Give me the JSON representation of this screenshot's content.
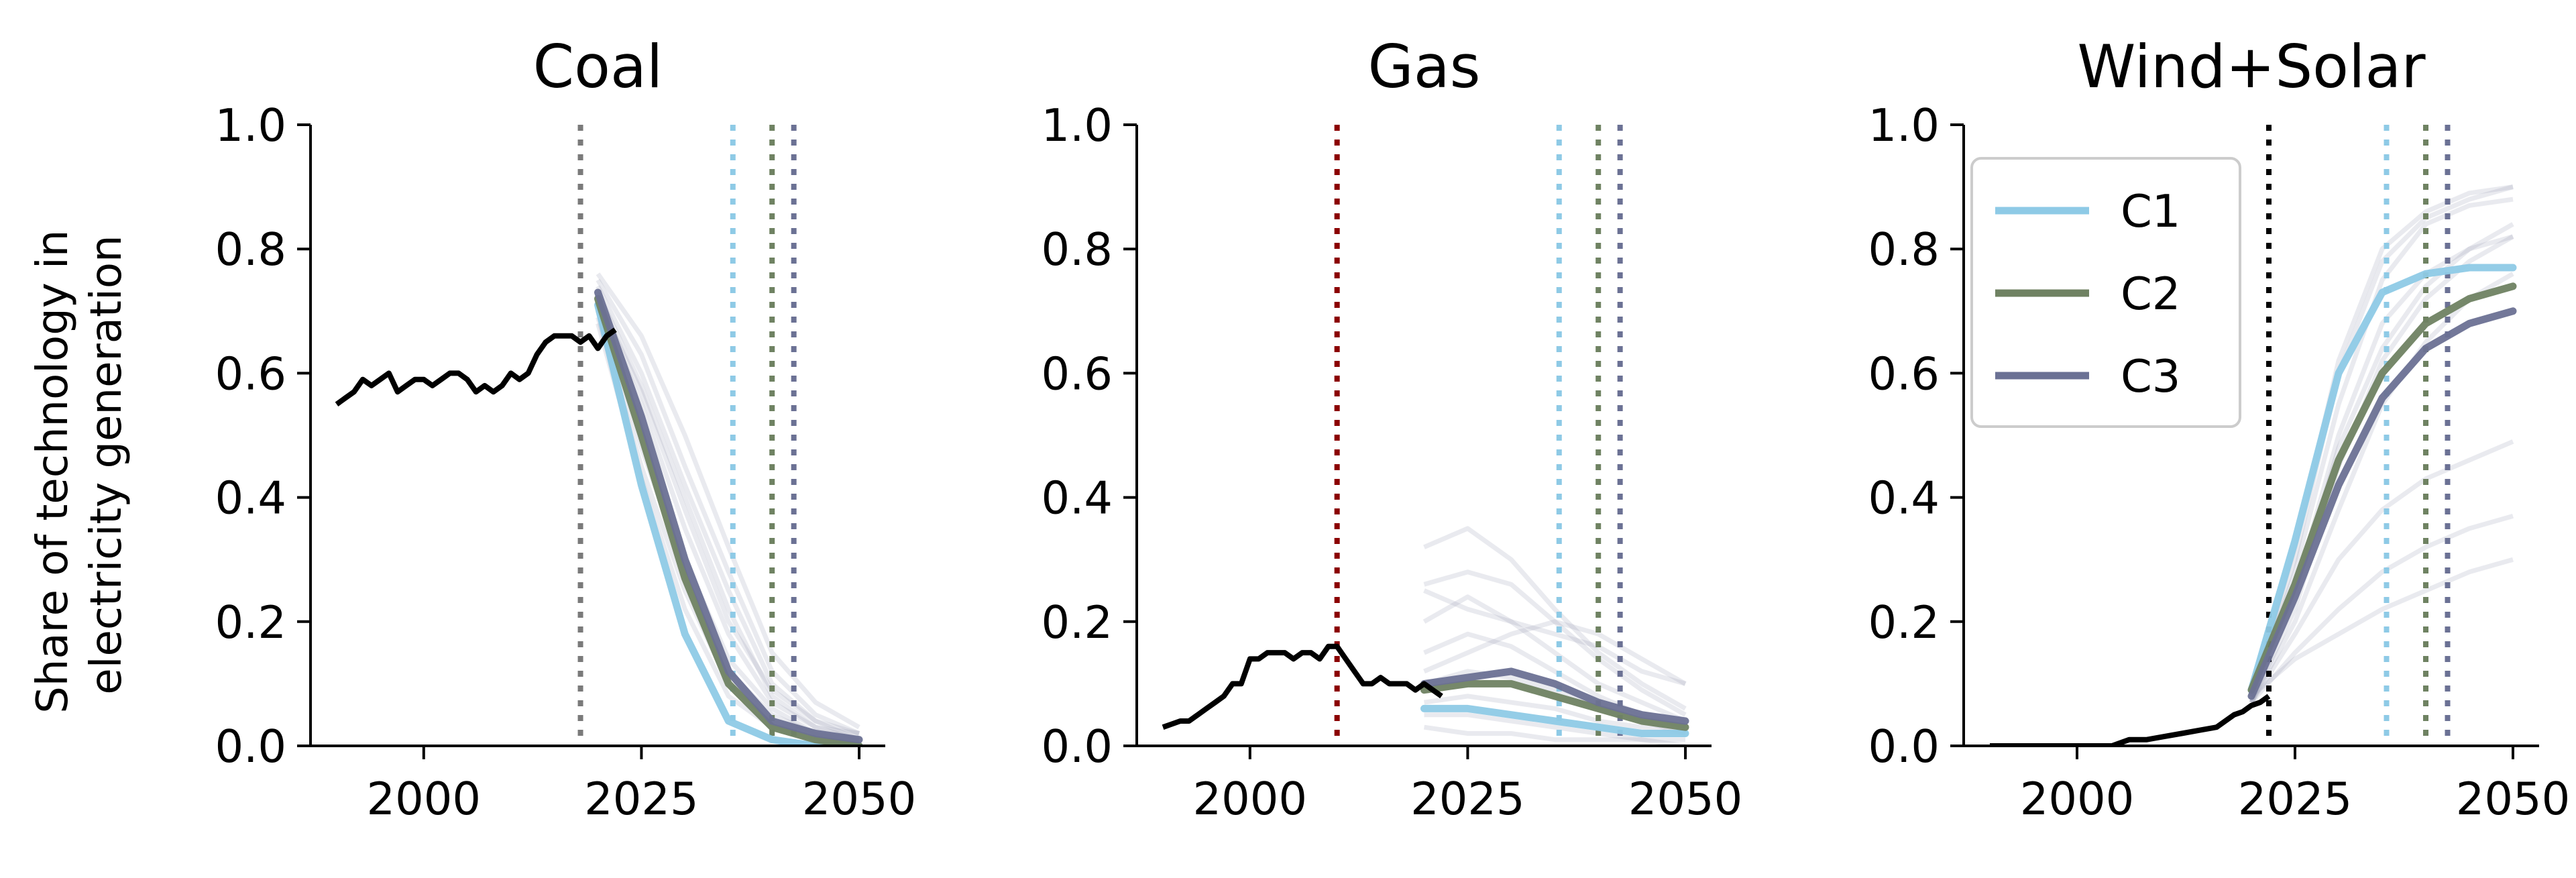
{
  "colors": {
    "history": "#000000",
    "envelope": "#9aa0b8",
    "C1": "#8ecae6",
    "C2": "#6f8262",
    "C3": "#6b7194"
  },
  "y_axis_label_line1": "Share of technology in",
  "y_axis_label_line2": "electricity generation",
  "legend_position": "upper left (Wind+Solar panel)",
  "chart_data": [
    {
      "type": "line",
      "title": "Coal",
      "xlim": [
        1987,
        2053
      ],
      "ylim": [
        0,
        1
      ],
      "xticks": [
        2000,
        2025,
        2050
      ],
      "yticks": [
        0.0,
        0.2,
        0.4,
        0.6,
        0.8,
        1.0
      ],
      "grid": false,
      "history": {
        "x": [
          1990,
          1991,
          1992,
          1993,
          1994,
          1995,
          1996,
          1997,
          1998,
          1999,
          2000,
          2001,
          2002,
          2003,
          2004,
          2005,
          2006,
          2007,
          2008,
          2009,
          2010,
          2011,
          2012,
          2013,
          2014,
          2015,
          2016,
          2017,
          2018,
          2019,
          2020,
          2021,
          2022
        ],
        "y": [
          0.55,
          0.56,
          0.57,
          0.59,
          0.58,
          0.59,
          0.6,
          0.57,
          0.58,
          0.59,
          0.59,
          0.58,
          0.59,
          0.6,
          0.6,
          0.59,
          0.57,
          0.58,
          0.57,
          0.58,
          0.6,
          0.59,
          0.6,
          0.63,
          0.65,
          0.66,
          0.66,
          0.66,
          0.65,
          0.66,
          0.64,
          0.66,
          0.67
        ]
      },
      "envelope_x": [
        2020,
        2025,
        2030,
        2035,
        2040,
        2045,
        2050
      ],
      "envelope": [
        [
          0.72,
          0.55,
          0.35,
          0.18,
          0.07,
          0.03,
          0.01
        ],
        [
          0.74,
          0.6,
          0.42,
          0.25,
          0.1,
          0.04,
          0.02
        ],
        [
          0.7,
          0.48,
          0.28,
          0.12,
          0.05,
          0.02,
          0.01
        ],
        [
          0.73,
          0.58,
          0.4,
          0.22,
          0.08,
          0.03,
          0.02
        ],
        [
          0.71,
          0.52,
          0.3,
          0.14,
          0.06,
          0.02,
          0.01
        ],
        [
          0.75,
          0.63,
          0.45,
          0.28,
          0.12,
          0.05,
          0.02
        ],
        [
          0.69,
          0.45,
          0.25,
          0.1,
          0.04,
          0.02,
          0.0
        ],
        [
          0.72,
          0.57,
          0.38,
          0.2,
          0.09,
          0.04,
          0.01
        ],
        [
          0.76,
          0.66,
          0.5,
          0.32,
          0.15,
          0.07,
          0.03
        ],
        [
          0.68,
          0.43,
          0.22,
          0.08,
          0.03,
          0.01,
          0.0
        ]
      ],
      "series": [
        {
          "name": "C1",
          "x": [
            2020,
            2025,
            2030,
            2035,
            2040,
            2045,
            2050
          ],
          "y": [
            0.71,
            0.42,
            0.18,
            0.04,
            0.01,
            0.0,
            0.0
          ]
        },
        {
          "name": "C2",
          "x": [
            2020,
            2025,
            2030,
            2035,
            2040,
            2045,
            2050
          ],
          "y": [
            0.72,
            0.5,
            0.27,
            0.1,
            0.03,
            0.01,
            0.0
          ]
        },
        {
          "name": "C3",
          "x": [
            2020,
            2025,
            2030,
            2035,
            2040,
            2045,
            2050
          ],
          "y": [
            0.73,
            0.53,
            0.3,
            0.12,
            0.04,
            0.02,
            0.01
          ]
        }
      ],
      "vlines": [
        {
          "x": 2018,
          "color": "#7a7a7a"
        },
        {
          "x": 2035.5,
          "color": "#8ecae6"
        },
        {
          "x": 2040,
          "color": "#6f8262"
        },
        {
          "x": 2042.5,
          "color": "#6b7194"
        }
      ]
    },
    {
      "type": "line",
      "title": "Gas",
      "xlim": [
        1987,
        2053
      ],
      "ylim": [
        0,
        1
      ],
      "xticks": [
        2000,
        2025,
        2050
      ],
      "yticks": [
        0.0,
        0.2,
        0.4,
        0.6,
        0.8,
        1.0
      ],
      "grid": false,
      "history": {
        "x": [
          1990,
          1991,
          1992,
          1993,
          1994,
          1995,
          1996,
          1997,
          1998,
          1999,
          2000,
          2001,
          2002,
          2003,
          2004,
          2005,
          2006,
          2007,
          2008,
          2009,
          2010,
          2011,
          2012,
          2013,
          2014,
          2015,
          2016,
          2017,
          2018,
          2019,
          2020,
          2021,
          2022
        ],
        "y": [
          0.03,
          0.035,
          0.04,
          0.04,
          0.05,
          0.06,
          0.07,
          0.08,
          0.1,
          0.1,
          0.14,
          0.14,
          0.15,
          0.15,
          0.15,
          0.14,
          0.15,
          0.15,
          0.14,
          0.16,
          0.16,
          0.14,
          0.12,
          0.1,
          0.1,
          0.11,
          0.1,
          0.1,
          0.1,
          0.09,
          0.1,
          0.09,
          0.08
        ]
      },
      "envelope_x": [
        2020,
        2025,
        2030,
        2035,
        2040,
        2045,
        2050
      ],
      "envelope": [
        [
          0.32,
          0.35,
          0.3,
          0.22,
          0.15,
          0.1,
          0.06
        ],
        [
          0.26,
          0.28,
          0.26,
          0.2,
          0.14,
          0.09,
          0.05
        ],
        [
          0.2,
          0.24,
          0.2,
          0.15,
          0.1,
          0.07,
          0.04
        ],
        [
          0.15,
          0.18,
          0.16,
          0.12,
          0.08,
          0.05,
          0.03
        ],
        [
          0.1,
          0.12,
          0.11,
          0.09,
          0.06,
          0.04,
          0.02
        ],
        [
          0.07,
          0.08,
          0.07,
          0.06,
          0.04,
          0.03,
          0.02
        ],
        [
          0.05,
          0.05,
          0.04,
          0.03,
          0.02,
          0.01,
          0.01
        ],
        [
          0.03,
          0.02,
          0.02,
          0.01,
          0.01,
          0.01,
          0.0
        ],
        [
          0.25,
          0.22,
          0.2,
          0.18,
          0.16,
          0.12,
          0.1
        ],
        [
          0.12,
          0.15,
          0.18,
          0.2,
          0.18,
          0.14,
          0.1
        ]
      ],
      "series": [
        {
          "name": "C1",
          "x": [
            2020,
            2025,
            2030,
            2035,
            2040,
            2045,
            2050
          ],
          "y": [
            0.06,
            0.06,
            0.05,
            0.04,
            0.03,
            0.02,
            0.02
          ]
        },
        {
          "name": "C2",
          "x": [
            2020,
            2025,
            2030,
            2035,
            2040,
            2045,
            2050
          ],
          "y": [
            0.09,
            0.1,
            0.1,
            0.08,
            0.06,
            0.04,
            0.03
          ]
        },
        {
          "name": "C3",
          "x": [
            2020,
            2025,
            2030,
            2035,
            2040,
            2045,
            2050
          ],
          "y": [
            0.1,
            0.11,
            0.12,
            0.1,
            0.07,
            0.05,
            0.04
          ]
        }
      ],
      "vlines": [
        {
          "x": 2010,
          "color": "#8b0000"
        },
        {
          "x": 2035.5,
          "color": "#8ecae6"
        },
        {
          "x": 2040,
          "color": "#6f8262"
        },
        {
          "x": 2042.5,
          "color": "#6b7194"
        }
      ]
    },
    {
      "type": "line",
      "title": "Wind+Solar",
      "xlim": [
        1987,
        2053
      ],
      "ylim": [
        0,
        1
      ],
      "xticks": [
        2000,
        2025,
        2050
      ],
      "yticks": [
        0.0,
        0.2,
        0.4,
        0.6,
        0.8,
        1.0
      ],
      "grid": false,
      "history": {
        "x": [
          1990,
          1992,
          1994,
          1996,
          1998,
          2000,
          2002,
          2004,
          2006,
          2008,
          2010,
          2012,
          2014,
          2016,
          2018,
          2019,
          2020,
          2021,
          2022
        ],
        "y": [
          0.0,
          0.0,
          0.0,
          0.0,
          0.0,
          0.0,
          0.0,
          0.0,
          0.01,
          0.01,
          0.015,
          0.02,
          0.025,
          0.03,
          0.05,
          0.055,
          0.065,
          0.07,
          0.08
        ]
      },
      "envelope_x": [
        2020,
        2025,
        2030,
        2035,
        2040,
        2045,
        2050
      ],
      "envelope": [
        [
          0.08,
          0.28,
          0.55,
          0.75,
          0.84,
          0.87,
          0.88
        ],
        [
          0.08,
          0.3,
          0.6,
          0.78,
          0.85,
          0.88,
          0.9
        ],
        [
          0.07,
          0.22,
          0.45,
          0.62,
          0.72,
          0.78,
          0.82
        ],
        [
          0.08,
          0.25,
          0.5,
          0.68,
          0.76,
          0.8,
          0.82
        ],
        [
          0.07,
          0.2,
          0.38,
          0.55,
          0.65,
          0.72,
          0.76
        ],
        [
          0.07,
          0.18,
          0.3,
          0.38,
          0.43,
          0.46,
          0.49
        ],
        [
          0.07,
          0.15,
          0.22,
          0.28,
          0.32,
          0.35,
          0.37
        ],
        [
          0.08,
          0.14,
          0.18,
          0.22,
          0.25,
          0.28,
          0.3
        ],
        [
          0.08,
          0.32,
          0.62,
          0.8,
          0.86,
          0.89,
          0.9
        ],
        [
          0.07,
          0.24,
          0.48,
          0.64,
          0.74,
          0.8,
          0.84
        ]
      ],
      "series": [
        {
          "name": "C1",
          "x": [
            2020,
            2025,
            2030,
            2035,
            2040,
            2045,
            2050
          ],
          "y": [
            0.09,
            0.33,
            0.6,
            0.73,
            0.76,
            0.77,
            0.77
          ]
        },
        {
          "name": "C2",
          "x": [
            2020,
            2025,
            2030,
            2035,
            2040,
            2045,
            2050
          ],
          "y": [
            0.09,
            0.26,
            0.46,
            0.6,
            0.68,
            0.72,
            0.74
          ]
        },
        {
          "name": "C3",
          "x": [
            2020,
            2025,
            2030,
            2035,
            2040,
            2045,
            2050
          ],
          "y": [
            0.08,
            0.24,
            0.42,
            0.56,
            0.64,
            0.68,
            0.7
          ]
        }
      ],
      "vlines": [
        {
          "x": 2022,
          "color": "#000000"
        },
        {
          "x": 2035.5,
          "color": "#8ecae6"
        },
        {
          "x": 2040,
          "color": "#6f8262"
        },
        {
          "x": 2042.5,
          "color": "#6b7194"
        }
      ],
      "legend": [
        "C1",
        "C2",
        "C3"
      ]
    }
  ]
}
